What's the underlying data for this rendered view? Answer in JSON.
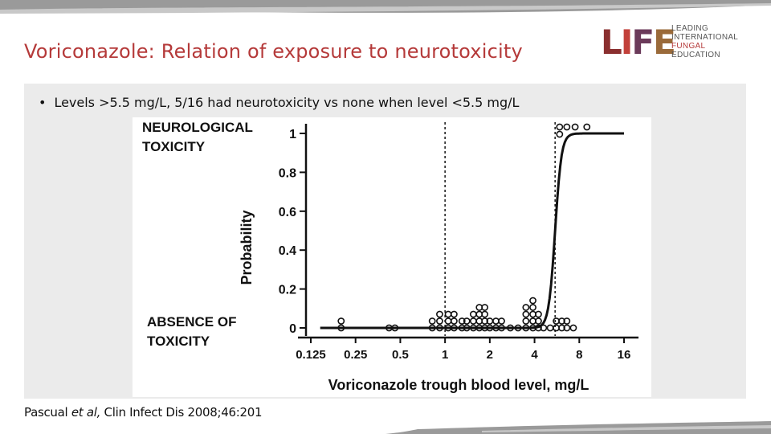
{
  "slide": {
    "title": "Voriconazole: Relation of exposure to neurotoxicity",
    "bullet": "Levels >5.5 mg/L, 5/16 had neurotoxicity vs none when level <5.5 mg/L",
    "citation": {
      "author": "Pascual ",
      "et_al": "et al,",
      "journal": " Clin Infect Dis 2008;46:201"
    }
  },
  "logo": {
    "mark": "LIFE",
    "lines": [
      "LEADING",
      "INTERNATIONAL",
      "FUNGAL",
      "EDUCATION"
    ],
    "colors": [
      "#8a2f2f",
      "#c2403a",
      "#6b3a5a",
      "#9a6a3a"
    ]
  },
  "chart_data": {
    "type": "scatter",
    "xlabel": "Voriconazole trough blood level, mg/L",
    "ylabel": "Probability",
    "x_scale": "log2",
    "x_ticks": [
      0.125,
      0.25,
      0.5,
      1,
      2,
      4,
      8,
      16
    ],
    "x_tick_labels": [
      "0.125",
      "0.25",
      "0.5",
      "1",
      "2",
      "4",
      "8",
      "16"
    ],
    "y_ticks": [
      0,
      0.2,
      0.4,
      0.6,
      0.8,
      1
    ],
    "y_tick_labels": [
      "0",
      "0.2",
      "0.4",
      "0.6",
      "0.8",
      "1"
    ],
    "ylim": [
      0,
      1
    ],
    "top_label": [
      "NEUROLOGICAL",
      "TOXICITY"
    ],
    "bottom_label": [
      "ABSENCE OF",
      "TOXICITY"
    ],
    "reference_lines_x": [
      1,
      5.5
    ],
    "toxicity_points_x": [
      5.9,
      6.6,
      7.5,
      9.0
    ],
    "toxicity_points_y": [
      1,
      1,
      1,
      1
    ],
    "toxicity_points_lower_x": [
      5.9
    ],
    "no_toxicity_stacks": [
      {
        "x": 0.2,
        "count": 2
      },
      {
        "x": 0.42,
        "count": 1
      },
      {
        "x": 0.46,
        "count": 1
      },
      {
        "x": 0.82,
        "count": 2
      },
      {
        "x": 0.92,
        "count": 3
      },
      {
        "x": 1.05,
        "count": 3
      },
      {
        "x": 1.15,
        "count": 3
      },
      {
        "x": 1.3,
        "count": 2
      },
      {
        "x": 1.4,
        "count": 2
      },
      {
        "x": 1.55,
        "count": 3
      },
      {
        "x": 1.7,
        "count": 4
      },
      {
        "x": 1.85,
        "count": 4
      },
      {
        "x": 2.0,
        "count": 2
      },
      {
        "x": 2.2,
        "count": 2
      },
      {
        "x": 2.4,
        "count": 2
      },
      {
        "x": 2.75,
        "count": 1
      },
      {
        "x": 3.1,
        "count": 1
      },
      {
        "x": 3.5,
        "count": 4
      },
      {
        "x": 3.9,
        "count": 5
      },
      {
        "x": 4.25,
        "count": 3
      },
      {
        "x": 4.6,
        "count": 1
      },
      {
        "x": 5.1,
        "count": 1
      },
      {
        "x": 5.6,
        "count": 2
      },
      {
        "x": 6.1,
        "count": 2
      },
      {
        "x": 6.6,
        "count": 2
      },
      {
        "x": 7.3,
        "count": 1
      }
    ],
    "curve": {
      "type": "logistic",
      "midpoint_x": 5.5,
      "slope": 14
    },
    "grid": false
  }
}
